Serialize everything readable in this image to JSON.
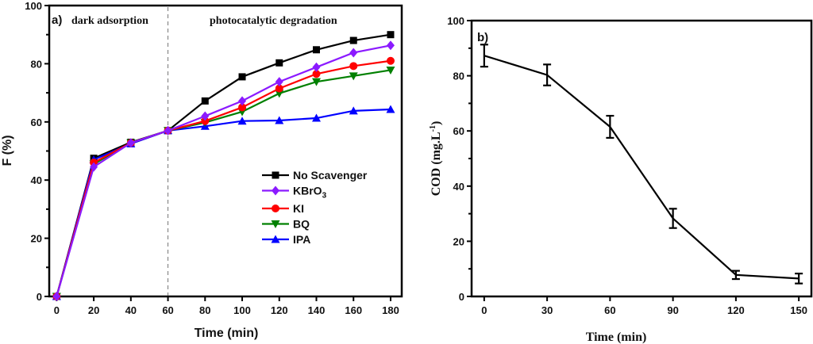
{
  "chart_data": [
    {
      "type": "line",
      "panel_label": "a)",
      "title": "",
      "xlabel": "Time (min)",
      "ylabel": "F (%)",
      "xlim": [
        -4,
        186
      ],
      "ylim": [
        0,
        100
      ],
      "xticks": [
        0,
        20,
        40,
        60,
        80,
        100,
        120,
        140,
        160,
        180
      ],
      "yticks": [
        0,
        20,
        40,
        60,
        80,
        100
      ],
      "grid": false,
      "legend_position": "center-right",
      "annotations": {
        "region_left": "dark adsorption",
        "region_right": "photocatalytic degradation",
        "divider_x": 60
      },
      "x": [
        0,
        20,
        40,
        60,
        80,
        100,
        120,
        140,
        160,
        180
      ],
      "series": [
        {
          "name": "No Scavenger",
          "name_main": "No Scavenger",
          "name_sub": "",
          "color": "#000000",
          "marker": "square",
          "values": [
            0,
            47.5,
            53,
            57,
            67.2,
            75.5,
            80.3,
            84.8,
            88,
            90
          ]
        },
        {
          "name": "KBrO3",
          "name_main": "KBrO",
          "name_sub": "3",
          "color": "#8B1AFF",
          "marker": "diamond",
          "values": [
            0,
            44.5,
            52.8,
            57,
            62,
            67.2,
            73.8,
            78.8,
            83.8,
            86.3
          ]
        },
        {
          "name": "KI",
          "name_main": "KI",
          "name_sub": "",
          "color": "#FF0000",
          "marker": "circle",
          "values": [
            0,
            46,
            52.8,
            57,
            60.3,
            65,
            71.5,
            76.5,
            79.2,
            81
          ]
        },
        {
          "name": "BQ",
          "name_main": "BQ",
          "name_sub": "",
          "color": "#008000",
          "marker": "triangle-down",
          "values": [
            0,
            45.5,
            52.8,
            57,
            59.8,
            63.5,
            69.8,
            73.8,
            75.8,
            77.8
          ]
        },
        {
          "name": "IPA",
          "name_main": "IPA",
          "name_sub": "",
          "color": "#0000FF",
          "marker": "triangle-up",
          "values": [
            0,
            47,
            52.5,
            57,
            58.5,
            60.3,
            60.5,
            61.3,
            63.8,
            64.3
          ]
        }
      ]
    },
    {
      "type": "line",
      "panel_label": "b)",
      "title": "",
      "xlabel": "Time (min)",
      "ylabel_main": "COD (mg.L",
      "ylabel_sup": "-1",
      "ylabel_end": ")",
      "xlim": [
        -6,
        156
      ],
      "ylim": [
        0,
        100
      ],
      "xticks": [
        0,
        30,
        60,
        90,
        120,
        150
      ],
      "yticks": [
        0,
        20,
        40,
        60,
        80,
        100
      ],
      "grid": false,
      "x": [
        0,
        30,
        60,
        90,
        120,
        150
      ],
      "series": [
        {
          "name": "COD",
          "color": "#000000",
          "values": [
            87.3,
            80.3,
            61.5,
            28.3,
            7.8,
            6.5
          ],
          "errors": [
            4,
            3.8,
            4,
            3.5,
            1.5,
            1.8
          ]
        }
      ]
    }
  ]
}
